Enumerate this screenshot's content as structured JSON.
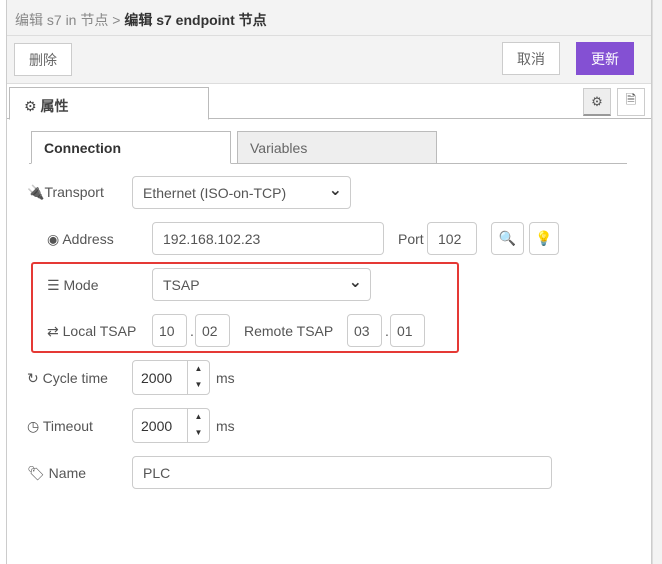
{
  "breadcrumb": {
    "parent": "编辑 s7 in 节点",
    "separator": ">",
    "current": "编辑 s7 endpoint 节点"
  },
  "toolbar": {
    "delete": "删除",
    "cancel": "取消",
    "update": "更新",
    "accent": "#8450d3"
  },
  "tabs": {
    "properties": "属性"
  },
  "subtabs": {
    "connection": "Connection",
    "variables": "Variables"
  },
  "form": {
    "transport": {
      "label": "Transport",
      "value": "Ethernet (ISO-on-TCP)"
    },
    "address": {
      "label": "Address",
      "value": "192.168.102.23",
      "port_label": "Port",
      "port": "102"
    },
    "mode": {
      "label": "Mode",
      "value": "TSAP"
    },
    "tsap": {
      "local_label": "Local TSAP",
      "local1": "10",
      "local2": "02",
      "remote_label": "Remote TSAP",
      "remote1": "03",
      "remote2": "01",
      "dot": "."
    },
    "cycle": {
      "label": "Cycle time",
      "value": "2000",
      "unit": "ms"
    },
    "timeout": {
      "label": "Timeout",
      "value": "2000",
      "unit": "ms"
    },
    "name": {
      "label": "Name",
      "value": "PLC"
    }
  }
}
